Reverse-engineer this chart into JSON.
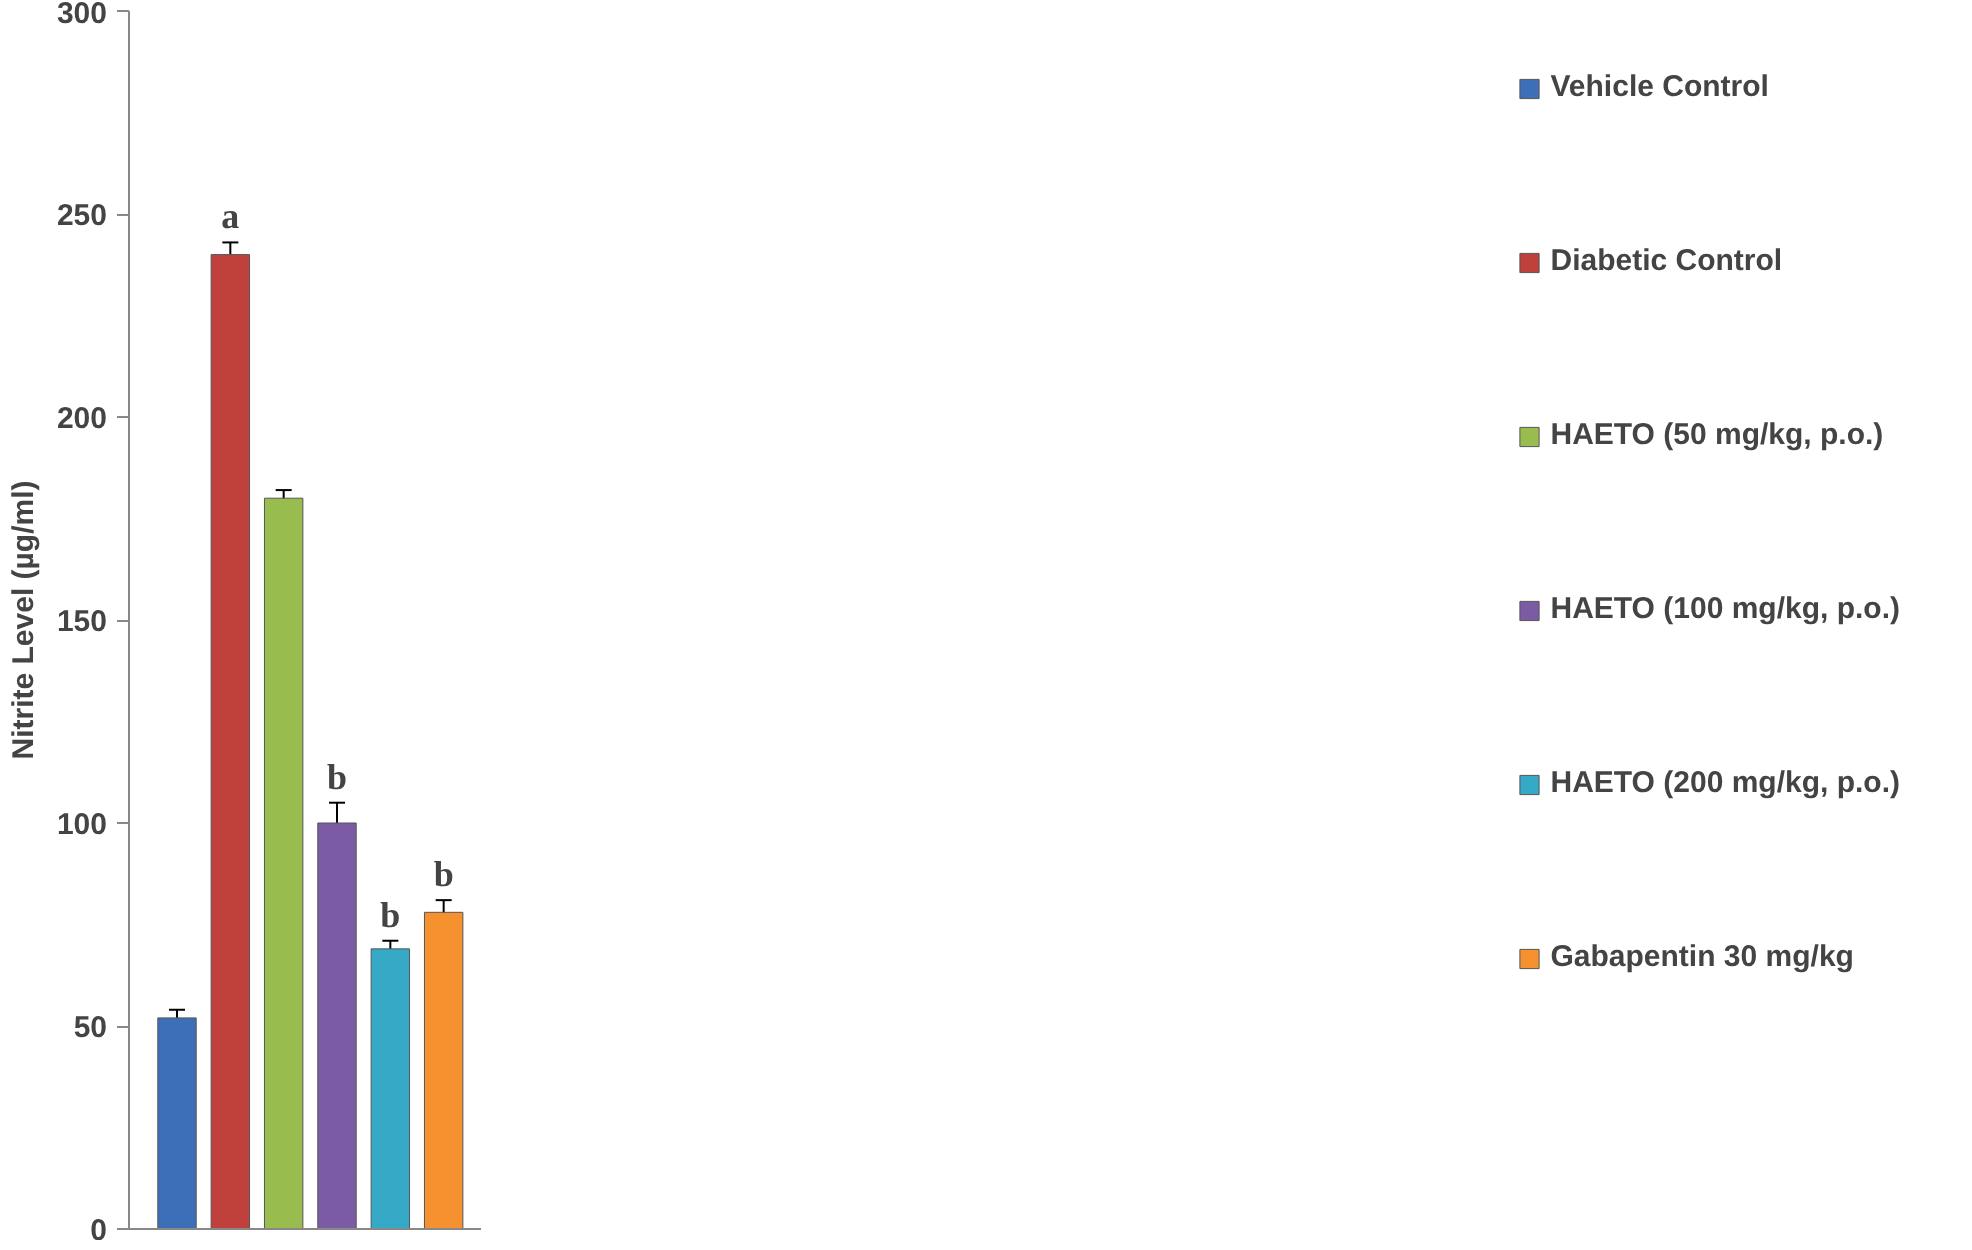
{
  "chart_data": {
    "type": "bar",
    "ylabel": "Nitrite Level (µg/ml)",
    "categories": [
      null,
      null,
      null,
      null,
      null,
      null
    ],
    "series": [
      {
        "name": "Vehicle Control",
        "color": "#3d6fb8",
        "values": [
          52,
          null,
          null,
          null,
          null,
          null
        ],
        "errors": [
          2,
          null,
          null,
          null,
          null,
          null
        ]
      },
      {
        "name": "Diabetic Control",
        "color": "#c0403c",
        "values": [
          null,
          240,
          null,
          null,
          null,
          null
        ],
        "errors": [
          null,
          3,
          null,
          null,
          null,
          null
        ],
        "value_labels": [
          null,
          "a",
          null,
          null,
          null,
          null
        ]
      },
      {
        "name": "HAETO (50 mg/kg, p.o.)",
        "color": "#98bd4e",
        "values": [
          null,
          null,
          180,
          null,
          null,
          null
        ],
        "errors": [
          null,
          null,
          2,
          null,
          null,
          null
        ]
      },
      {
        "name": "HAETO (100 mg/kg, p.o.)",
        "color": "#7b5ba3",
        "values": [
          null,
          null,
          null,
          100,
          null,
          null
        ],
        "errors": [
          null,
          null,
          null,
          5,
          null,
          null
        ],
        "value_labels": [
          null,
          null,
          null,
          "b",
          null,
          null
        ]
      },
      {
        "name": "HAETO (200 mg/kg, p.o.)",
        "color": "#35a9c6",
        "values": [
          null,
          null,
          null,
          null,
          69,
          null
        ],
        "errors": [
          null,
          null,
          null,
          null,
          2,
          null
        ],
        "value_labels": [
          null,
          null,
          null,
          null,
          "b",
          null
        ]
      },
      {
        "name": "Gabapentin 30 mg/kg",
        "color": "#f5912e",
        "values": [
          null,
          null,
          null,
          null,
          null,
          78
        ],
        "errors": [
          null,
          null,
          null,
          null,
          null,
          3
        ],
        "value_labels": [
          null,
          null,
          null,
          null,
          null,
          "b"
        ]
      }
    ],
    "ylim": [
      0,
      300
    ],
    "yticks": [
      0,
      50,
      100,
      150,
      200,
      250,
      300
    ],
    "grid": false,
    "legend": "right",
    "tick_labels": "y"
  }
}
